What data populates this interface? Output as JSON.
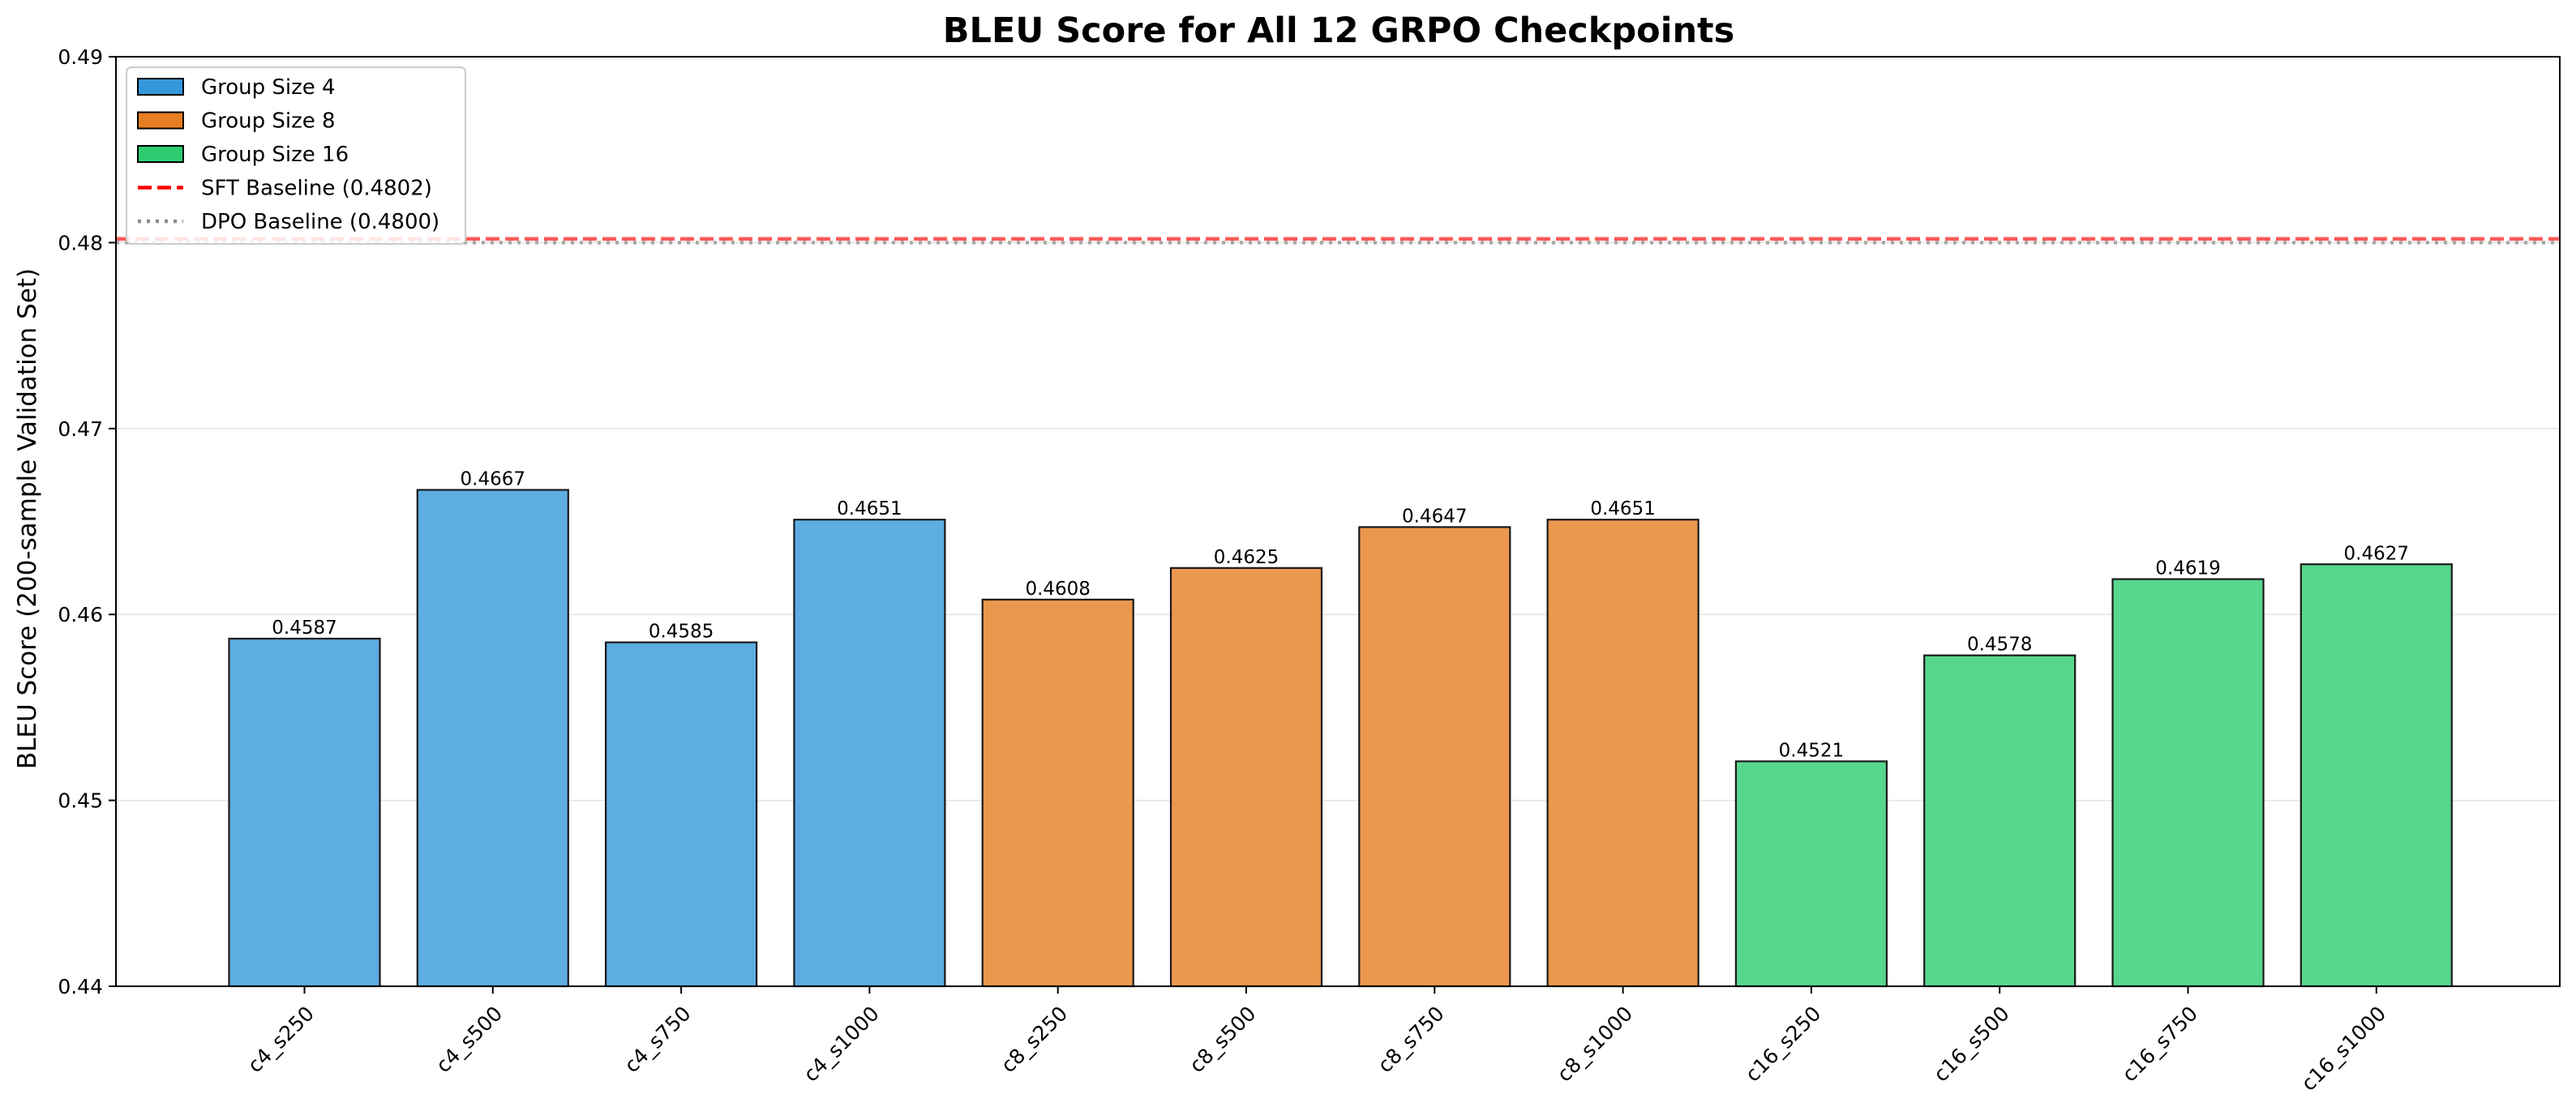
{
  "chart_data": {
    "type": "bar",
    "title": "BLEU Score for All 12 GRPO Checkpoints",
    "xlabel": "",
    "ylabel": "BLEU Score (200-sample Validation Set)",
    "ylim": [
      0.44,
      0.49
    ],
    "yticks": [
      "0.44",
      "0.45",
      "0.46",
      "0.47",
      "0.48",
      "0.49"
    ],
    "grid": "y",
    "legend_position": "top-left",
    "categories": [
      "c4_s250",
      "c4_s500",
      "c4_s750",
      "c4_s1000",
      "c8_s250",
      "c8_s500",
      "c8_s750",
      "c8_s1000",
      "c16_s250",
      "c16_s500",
      "c16_s750",
      "c16_s1000"
    ],
    "values": [
      0.4587,
      0.4667,
      0.4585,
      0.4651,
      0.4608,
      0.4625,
      0.4647,
      0.4651,
      0.4521,
      0.4578,
      0.4619,
      0.4627
    ],
    "value_labels": [
      "0.4587",
      "0.4667",
      "0.4585",
      "0.4651",
      "0.4608",
      "0.4625",
      "0.4647",
      "0.4651",
      "0.4521",
      "0.4578",
      "0.4619",
      "0.4627"
    ],
    "groups": [
      {
        "name": "Group Size 4",
        "color": "#5DADE2",
        "legend_color": "#3498DB",
        "indices": [
          0,
          1,
          2,
          3
        ]
      },
      {
        "name": "Group Size 8",
        "color": "#EB984E",
        "legend_color": "#E67E22",
        "indices": [
          4,
          5,
          6,
          7
        ]
      },
      {
        "name": "Group Size 16",
        "color": "#58D68D",
        "legend_color": "#2ECC71",
        "indices": [
          8,
          9,
          10,
          11
        ]
      }
    ],
    "reference_lines": [
      {
        "name": "SFT Baseline (0.4802)",
        "value": 0.4802,
        "style": "dashed",
        "color": "#ff0000"
      },
      {
        "name": "DPO Baseline (0.4800)",
        "value": 0.48,
        "style": "dotted",
        "color": "#808080"
      }
    ]
  }
}
